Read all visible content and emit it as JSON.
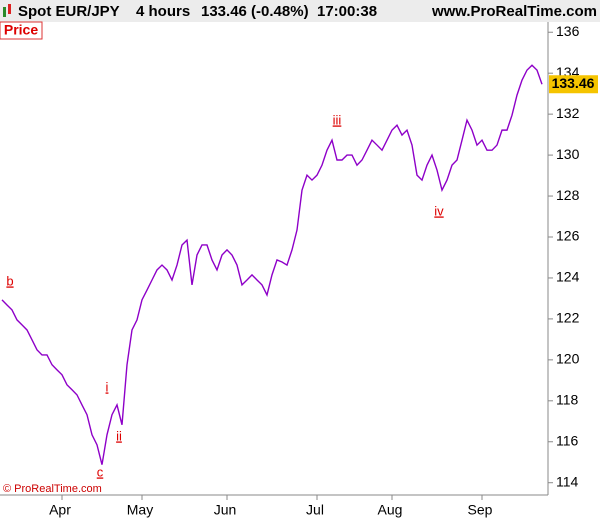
{
  "header": {
    "symbol": "Spot EUR/JPY",
    "period": "4 hours",
    "quote": "133.46 (-0.48%)",
    "time": "17:00:38",
    "site": "www.ProRealTime.com"
  },
  "chart_data": {
    "type": "line",
    "label": "Price",
    "color": "#8e00c8",
    "categories": [
      null,
      null,
      null,
      null,
      null,
      null,
      null,
      null,
      null,
      null,
      null,
      null,
      "Apr",
      null,
      null,
      null,
      null,
      null,
      null,
      null,
      null,
      null,
      null,
      null,
      null,
      null,
      null,
      null,
      "May",
      null,
      null,
      null,
      null,
      null,
      null,
      null,
      null,
      null,
      null,
      null,
      null,
      null,
      null,
      null,
      null,
      "Jun",
      null,
      null,
      null,
      null,
      null,
      null,
      null,
      null,
      null,
      null,
      null,
      null,
      null,
      null,
      null,
      null,
      null,
      "Jul",
      null,
      null,
      null,
      null,
      null,
      null,
      null,
      null,
      null,
      null,
      null,
      null,
      null,
      null,
      "Aug",
      null,
      null,
      null,
      null,
      null,
      null,
      null,
      null,
      null,
      null,
      null,
      null,
      null,
      null,
      null,
      null,
      null,
      "Sep",
      null,
      null,
      null,
      null,
      null,
      null,
      null,
      null,
      null,
      null,
      null,
      null
    ],
    "values": [
      122.93,
      122.68,
      122.44,
      121.95,
      121.71,
      121.46,
      120.98,
      120.49,
      120.24,
      120.24,
      119.76,
      119.51,
      119.27,
      118.78,
      118.54,
      118.29,
      117.8,
      117.32,
      116.34,
      115.85,
      114.88,
      116.34,
      117.32,
      117.8,
      116.83,
      119.76,
      121.46,
      121.95,
      122.93,
      123.41,
      123.9,
      124.39,
      124.63,
      124.39,
      123.9,
      124.63,
      125.61,
      125.85,
      123.66,
      125.12,
      125.61,
      125.61,
      124.88,
      124.39,
      125.12,
      125.37,
      125.12,
      124.63,
      123.66,
      123.9,
      124.15,
      123.9,
      123.66,
      123.17,
      124.15,
      124.88,
      124.78,
      124.63,
      125.37,
      126.34,
      128.29,
      129.02,
      128.78,
      129.02,
      129.51,
      130.24,
      130.73,
      129.76,
      129.76,
      130,
      130,
      129.51,
      129.76,
      130.24,
      130.73,
      130.49,
      130.24,
      130.73,
      131.22,
      131.46,
      130.98,
      131.22,
      130.49,
      129.02,
      128.78,
      129.51,
      130,
      129.27,
      128.29,
      128.78,
      129.51,
      129.76,
      130.73,
      131.71,
      131.22,
      130.49,
      130.73,
      130.24,
      130.24,
      130.49,
      131.22,
      131.22,
      131.95,
      132.93,
      133.66,
      134.15,
      134.39,
      134.15,
      133.46
    ],
    "ylim": [
      113.4,
      136.5
    ],
    "yticks": [
      114,
      116,
      118,
      120,
      122,
      124,
      126,
      128,
      130,
      132,
      134,
      136
    ],
    "annotations": [
      "b",
      "c",
      "i",
      "ii",
      "iii",
      "iv"
    ],
    "footer": "© ProRealTime.com"
  }
}
